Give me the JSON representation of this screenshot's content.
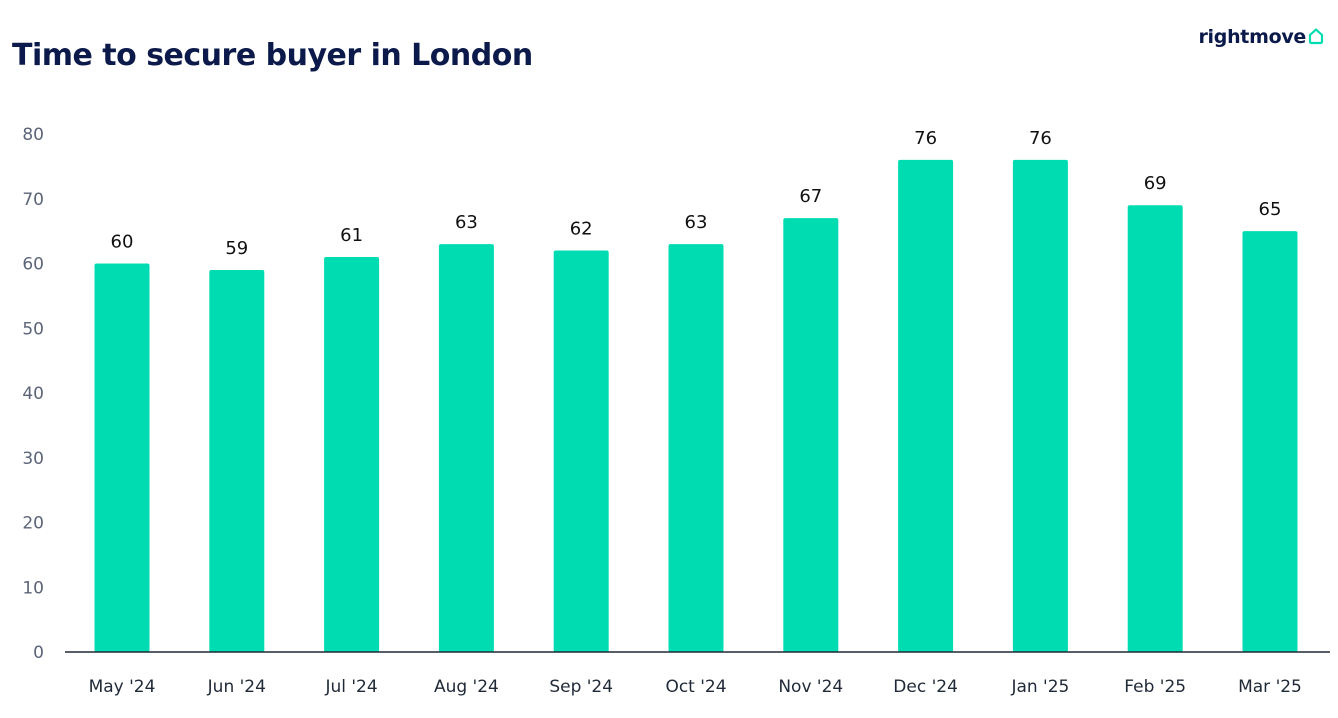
{
  "header": {
    "title": "Time to secure buyer in London",
    "brand": "rightmove",
    "brand_icon": "house-outline-icon"
  },
  "colors": {
    "bar": "#00dcb1",
    "title": "#0b1a4a",
    "axis": "#1f2937"
  },
  "chart_data": {
    "type": "bar",
    "title": "Time to secure buyer in London",
    "xlabel": "",
    "ylabel": "",
    "categories": [
      "May '24",
      "Jun '24",
      "Jul '24",
      "Aug '24",
      "Sep '24",
      "Oct '24",
      "Nov '24",
      "Dec '24",
      "Jan '25",
      "Feb '25",
      "Mar '25"
    ],
    "values": [
      60,
      59,
      61,
      63,
      62,
      63,
      67,
      76,
      76,
      69,
      65
    ],
    "ylim": [
      0,
      80
    ],
    "yticks": [
      0,
      10,
      20,
      30,
      40,
      50,
      60,
      70,
      80
    ],
    "data_labels": true,
    "grid": false,
    "legend": "none"
  }
}
